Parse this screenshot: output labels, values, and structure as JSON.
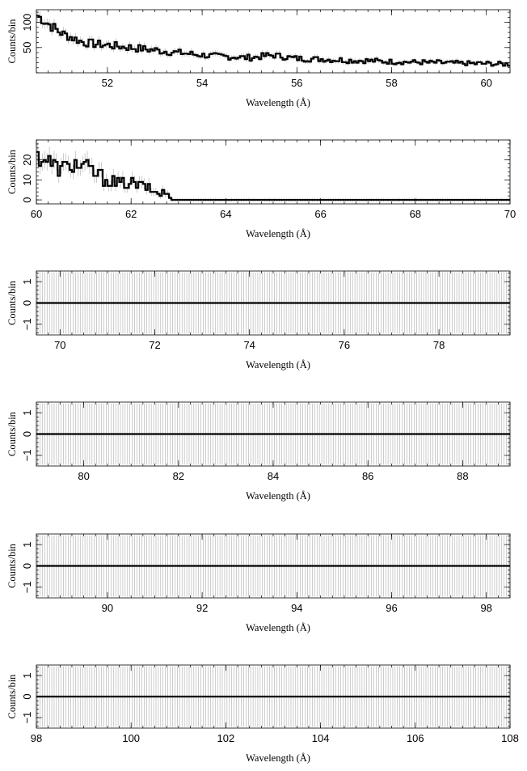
{
  "chart_data": [
    {
      "type": "line",
      "style": "step histogram with error bars",
      "xlabel": "Wavelength (Å)",
      "ylabel": "Counts/bin",
      "xlim": [
        50.5,
        60.5
      ],
      "ylim": [
        0,
        125
      ],
      "xticks": [
        "52",
        "54",
        "56",
        "58",
        "60"
      ],
      "yticks": [
        "50",
        "100"
      ],
      "x": [
        50.5,
        51.0,
        51.5,
        52.0,
        52.5,
        53.0,
        53.5,
        54.0,
        54.5,
        55.0,
        55.5,
        56.0,
        56.5,
        57.0,
        57.5,
        58.0,
        58.5,
        59.0,
        59.5,
        60.0,
        60.5
      ],
      "y": [
        115,
        80,
        60,
        55,
        50,
        45,
        40,
        35,
        32,
        30,
        35,
        28,
        27,
        25,
        24,
        22,
        21,
        20,
        19,
        18,
        17
      ]
    },
    {
      "type": "line",
      "style": "step histogram with error bars",
      "xlabel": "Wavelength (Å)",
      "ylabel": "Counts/bin",
      "xlim": [
        60,
        70
      ],
      "ylim": [
        -2,
        30
      ],
      "xticks": [
        "60",
        "62",
        "64",
        "66",
        "68",
        "70"
      ],
      "yticks": [
        "0",
        "10",
        "20"
      ],
      "x": [
        60.0,
        60.25,
        60.5,
        60.75,
        61.0,
        61.25,
        61.5,
        61.75,
        62.0,
        62.25,
        62.5,
        62.75,
        62.9,
        63.0,
        64.0,
        65.0,
        66.0,
        67.0,
        68.0,
        69.0,
        70.0
      ],
      "y": [
        22,
        20,
        15,
        18,
        17,
        13,
        10,
        8,
        8,
        7,
        4,
        3,
        0,
        0,
        0,
        0,
        0,
        0,
        0,
        0,
        0
      ]
    },
    {
      "type": "line",
      "style": "step histogram with error bars",
      "xlabel": "Wavelength (Å)",
      "ylabel": "Counts/bin",
      "xlim": [
        69.5,
        79.5
      ],
      "ylim": [
        -1.5,
        1.5
      ],
      "xticks": [
        "70",
        "72",
        "74",
        "76",
        "78"
      ],
      "yticks": [
        "−1",
        "0",
        "1"
      ],
      "x": [
        69.5,
        79.5
      ],
      "y": [
        0,
        0
      ]
    },
    {
      "type": "line",
      "style": "step histogram with error bars",
      "xlabel": "Wavelength (Å)",
      "ylabel": "Counts/bin",
      "xlim": [
        79,
        89
      ],
      "ylim": [
        -1.5,
        1.5
      ],
      "xticks": [
        "80",
        "82",
        "84",
        "86",
        "88"
      ],
      "yticks": [
        "−1",
        "0",
        "1"
      ],
      "x": [
        79,
        89
      ],
      "y": [
        0,
        0
      ]
    },
    {
      "type": "line",
      "style": "step histogram with error bars",
      "xlabel": "Wavelength (Å)",
      "ylabel": "Counts/bin",
      "xlim": [
        88.5,
        98.5
      ],
      "ylim": [
        -1.5,
        1.5
      ],
      "xticks": [
        "90",
        "92",
        "94",
        "96",
        "98"
      ],
      "yticks": [
        "−1",
        "0",
        "1"
      ],
      "x": [
        88.5,
        98.5
      ],
      "y": [
        0,
        0
      ]
    },
    {
      "type": "line",
      "style": "step histogram with error bars",
      "xlabel": "Wavelength (Å)",
      "ylabel": "Counts/bin",
      "xlim": [
        98,
        108
      ],
      "ylim": [
        -1.5,
        1.5
      ],
      "xticks": [
        "98",
        "100",
        "102",
        "104",
        "106",
        "108"
      ],
      "yticks": [
        "−1",
        "0",
        "1"
      ],
      "x": [
        98,
        108
      ],
      "y": [
        0,
        0
      ]
    }
  ]
}
